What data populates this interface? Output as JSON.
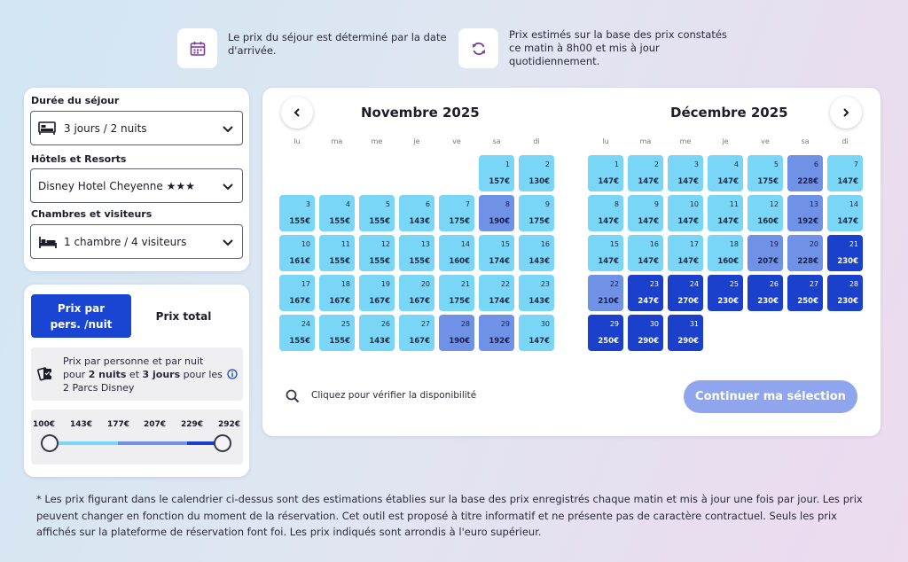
{
  "info": {
    "arrival_text": "Le prix du séjour est déterminé par la date d'arrivée.",
    "estimate_text": "Prix estimés sur la base des prix constatés ce matin à 8h00 et mis à jour quotidiennement."
  },
  "filters": {
    "duration_label": "Durée du séjour",
    "duration_value": "3 jours / 2 nuits",
    "hotel_label": "Hôtels et Resorts",
    "hotel_value": "Disney Hotel Cheyenne ★★★",
    "rooms_label": "Chambres et visiteurs",
    "rooms_value": "1 chambre / 4 visiteurs"
  },
  "pricing": {
    "tab_per_person": "Prix par pers. /nuit",
    "tab_total": "Prix total",
    "info_line1": "Prix par personne et par nuit",
    "info_pre": "pour ",
    "info_nights": "2 nuits",
    "info_mid": " et ",
    "info_days": "3 jours",
    "info_post": " pour les",
    "info_line3": "2 Parcs Disney",
    "scale": [
      "100€",
      "143€",
      "177€",
      "207€",
      "229€",
      "292€"
    ]
  },
  "calendar": {
    "weekdays": [
      "lu",
      "ma",
      "me",
      "je",
      "ve",
      "sa",
      "di"
    ],
    "months": [
      {
        "title": "Novembre 2025",
        "offset": 5,
        "days": [
          {
            "d": "1",
            "p": "157€",
            "l": 1
          },
          {
            "d": "2",
            "p": "130€",
            "l": 1
          },
          {
            "d": "3",
            "p": "155€",
            "l": 1
          },
          {
            "d": "4",
            "p": "155€",
            "l": 1
          },
          {
            "d": "5",
            "p": "155€",
            "l": 1
          },
          {
            "d": "6",
            "p": "143€",
            "l": 1
          },
          {
            "d": "7",
            "p": "175€",
            "l": 1
          },
          {
            "d": "8",
            "p": "190€",
            "l": 2
          },
          {
            "d": "9",
            "p": "175€",
            "l": 1
          },
          {
            "d": "10",
            "p": "161€",
            "l": 1
          },
          {
            "d": "11",
            "p": "155€",
            "l": 1
          },
          {
            "d": "12",
            "p": "155€",
            "l": 1
          },
          {
            "d": "13",
            "p": "155€",
            "l": 1
          },
          {
            "d": "14",
            "p": "160€",
            "l": 1
          },
          {
            "d": "15",
            "p": "174€",
            "l": 1
          },
          {
            "d": "16",
            "p": "143€",
            "l": 1
          },
          {
            "d": "17",
            "p": "167€",
            "l": 1
          },
          {
            "d": "18",
            "p": "167€",
            "l": 1
          },
          {
            "d": "19",
            "p": "167€",
            "l": 1
          },
          {
            "d": "20",
            "p": "167€",
            "l": 1
          },
          {
            "d": "21",
            "p": "175€",
            "l": 1
          },
          {
            "d": "22",
            "p": "174€",
            "l": 1
          },
          {
            "d": "23",
            "p": "143€",
            "l": 1
          },
          {
            "d": "24",
            "p": "155€",
            "l": 1
          },
          {
            "d": "25",
            "p": "155€",
            "l": 1
          },
          {
            "d": "26",
            "p": "143€",
            "l": 1
          },
          {
            "d": "27",
            "p": "167€",
            "l": 1
          },
          {
            "d": "28",
            "p": "190€",
            "l": 2
          },
          {
            "d": "29",
            "p": "192€",
            "l": 2
          },
          {
            "d": "30",
            "p": "147€",
            "l": 1
          }
        ]
      },
      {
        "title": "Décembre 2025",
        "offset": 0,
        "days": [
          {
            "d": "1",
            "p": "147€",
            "l": 1
          },
          {
            "d": "2",
            "p": "147€",
            "l": 1
          },
          {
            "d": "3",
            "p": "147€",
            "l": 1
          },
          {
            "d": "4",
            "p": "147€",
            "l": 1
          },
          {
            "d": "5",
            "p": "175€",
            "l": 1
          },
          {
            "d": "6",
            "p": "228€",
            "l": 2
          },
          {
            "d": "7",
            "p": "147€",
            "l": 1
          },
          {
            "d": "8",
            "p": "147€",
            "l": 1
          },
          {
            "d": "9",
            "p": "147€",
            "l": 1
          },
          {
            "d": "10",
            "p": "147€",
            "l": 1
          },
          {
            "d": "11",
            "p": "147€",
            "l": 1
          },
          {
            "d": "12",
            "p": "160€",
            "l": 1
          },
          {
            "d": "13",
            "p": "192€",
            "l": 2
          },
          {
            "d": "14",
            "p": "147€",
            "l": 1
          },
          {
            "d": "15",
            "p": "147€",
            "l": 1
          },
          {
            "d": "16",
            "p": "147€",
            "l": 1
          },
          {
            "d": "17",
            "p": "147€",
            "l": 1
          },
          {
            "d": "18",
            "p": "160€",
            "l": 1
          },
          {
            "d": "19",
            "p": "207€",
            "l": 2
          },
          {
            "d": "20",
            "p": "228€",
            "l": 2
          },
          {
            "d": "21",
            "p": "230€",
            "l": 3
          },
          {
            "d": "22",
            "p": "210€",
            "l": 2
          },
          {
            "d": "23",
            "p": "247€",
            "l": 3
          },
          {
            "d": "24",
            "p": "270€",
            "l": 3
          },
          {
            "d": "25",
            "p": "230€",
            "l": 3
          },
          {
            "d": "26",
            "p": "230€",
            "l": 3
          },
          {
            "d": "27",
            "p": "250€",
            "l": 3
          },
          {
            "d": "28",
            "p": "230€",
            "l": 3
          },
          {
            "d": "29",
            "p": "250€",
            "l": 3
          },
          {
            "d": "30",
            "p": "290€",
            "l": 3
          },
          {
            "d": "31",
            "p": "290€",
            "l": 3
          }
        ]
      }
    ],
    "availability_text": "Cliquez pour vérifier la disponibilité",
    "continue_label": "Continuer ma sélection"
  },
  "footnote": "* Les prix figurant dans le calendrier ci-dessus sont des estimations établies sur la base des prix enregistrés chaque matin et mis à jour une fois par jour. Les prix peuvent changer en fonction du moment de la réservation. Cet outil est proposé à titre informatif et ne présente pas de caractère contractuel. Seuls les prix affichés sur la plateforme de réservation font foi. Les prix indiqués sont arrondis à l'euro supérieur.",
  "colors": {
    "level1": "#79d6f7",
    "level2": "#6f91e6",
    "level3": "#1a40cc",
    "accent": "#1a44d2",
    "button": "#8fa6ee"
  },
  "icons": {
    "calendar": "calendar-icon",
    "refresh": "refresh-icon",
    "bed": "bed-icon",
    "ticket": "ticket-icon",
    "info": "info-icon",
    "search": "search-icon"
  }
}
